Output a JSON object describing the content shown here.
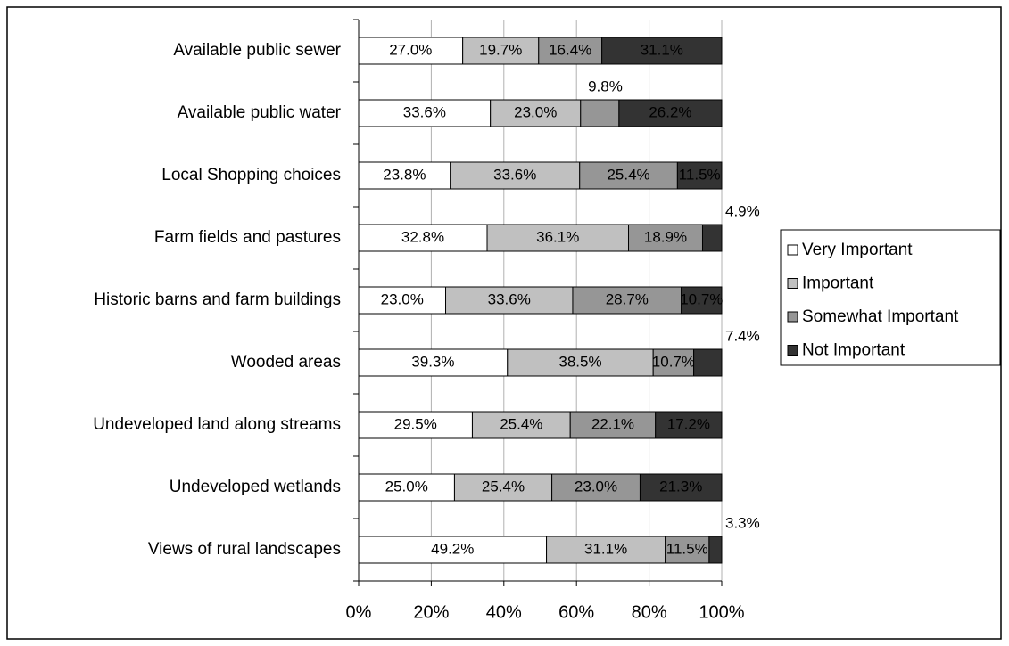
{
  "chart_data": {
    "type": "stacked-percent-bar",
    "categories": [
      "Available public sewer",
      "Available public water",
      "Local Shopping choices",
      "Farm fields and pastures",
      "Historic barns and farm buildings",
      "Wooded areas",
      "Undeveloped land along streams",
      "Undeveloped wetlands",
      "Views of rural landscapes"
    ],
    "series": [
      {
        "name": "Very Important",
        "color": "#ffffff",
        "values": [
          27.0,
          33.6,
          23.8,
          32.8,
          23.0,
          39.3,
          29.5,
          25.0,
          49.2
        ],
        "value_labels": [
          "27.0%",
          "33.6%",
          "23.8%",
          "32.8%",
          "23.0%",
          "39.3%",
          "29.5%",
          "25.0%",
          "49.2%"
        ]
      },
      {
        "name": "Important",
        "color": "#c0c0c0",
        "values": [
          19.7,
          23.0,
          33.6,
          36.1,
          33.6,
          38.5,
          25.4,
          25.4,
          31.1
        ],
        "value_labels": [
          "19.7%",
          "23.0%",
          "33.6%",
          "36.1%",
          "33.6%",
          "38.5%",
          "25.4%",
          "25.4%",
          "31.1%"
        ]
      },
      {
        "name": "Somewhat Important",
        "color": "#969696",
        "values": [
          16.4,
          9.8,
          25.4,
          18.9,
          28.7,
          10.7,
          22.1,
          23.0,
          11.5
        ],
        "value_labels": [
          "16.4%",
          "9.8%",
          "25.4%",
          "18.9%",
          "28.7%",
          "10.7%",
          "22.1%",
          "23.0%",
          "11.5%"
        ]
      },
      {
        "name": "Not Important",
        "color": "#333333",
        "values": [
          31.1,
          26.2,
          11.5,
          4.9,
          10.7,
          7.4,
          17.2,
          21.3,
          3.3
        ],
        "value_labels": [
          "31.1%",
          "26.2%",
          "11.5%",
          "4.9%",
          "10.7%",
          "7.4%",
          "17.2%",
          "21.3%",
          "3.3%"
        ]
      }
    ],
    "xlim": [
      0,
      100
    ],
    "xticks": [
      {
        "value": 0,
        "label": "0%"
      },
      {
        "value": 20,
        "label": "20%"
      },
      {
        "value": 40,
        "label": "40%"
      },
      {
        "value": 60,
        "label": "60%"
      },
      {
        "value": 80,
        "label": "80%"
      },
      {
        "value": 100,
        "label": "100%"
      }
    ],
    "grid": true,
    "legend": "right"
  }
}
